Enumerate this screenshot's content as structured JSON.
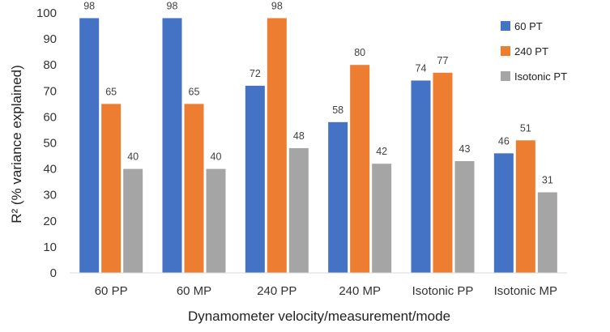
{
  "chart_data": {
    "type": "bar",
    "title": "",
    "xlabel": "Dynamometer velocity/measurement/mode",
    "ylabel": "R² (% variance explained)",
    "ylim": [
      0,
      100
    ],
    "yticks": [
      0,
      10,
      20,
      30,
      40,
      50,
      60,
      70,
      80,
      90,
      100
    ],
    "categories": [
      "60 PP",
      "60 MP",
      "240 PP",
      "240 MP",
      "Isotonic PP",
      "Isotonic MP"
    ],
    "series": [
      {
        "name": "60 PT",
        "color": "#4472C4",
        "values": [
          98,
          98,
          72,
          58,
          74,
          46
        ]
      },
      {
        "name": "240 PT",
        "color": "#ED7D31",
        "values": [
          65,
          65,
          98,
          80,
          77,
          51
        ]
      },
      {
        "name": "Isotonic PT",
        "color": "#A5A5A5",
        "values": [
          40,
          40,
          48,
          42,
          43,
          31
        ]
      }
    ],
    "legend_position": "top-right",
    "grid": false
  }
}
